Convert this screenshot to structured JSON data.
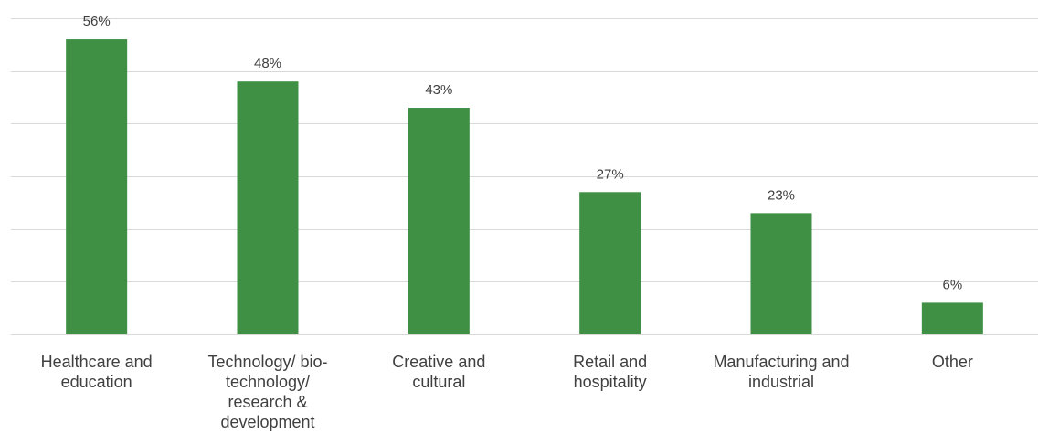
{
  "chart_data": {
    "type": "bar",
    "categories": [
      "Healthcare and education",
      "Technology/ bio-technology/ research & development",
      "Creative and cultural",
      "Retail and hospitality",
      "Manufacturing and industrial",
      "Other"
    ],
    "category_label_lines": [
      [
        "Healthcare and",
        "education"
      ],
      [
        "Technology/ bio-",
        "technology/",
        "research &",
        "development"
      ],
      [
        "Creative and",
        "cultural"
      ],
      [
        "Retail and",
        "hospitality"
      ],
      [
        "Manufacturing and",
        "industrial"
      ],
      [
        "Other"
      ]
    ],
    "values": [
      56,
      48,
      43,
      27,
      23,
      6
    ],
    "data_labels": [
      "56%",
      "48%",
      "43%",
      "27%",
      "23%",
      "6%"
    ],
    "value_unit": "%",
    "ylim": [
      0,
      60
    ],
    "grid": true,
    "gridline_step": 10,
    "bar_color": "#3f8f45",
    "gridline_color": "#d9d9d9",
    "label_color": "#404040",
    "legend": "none"
  }
}
